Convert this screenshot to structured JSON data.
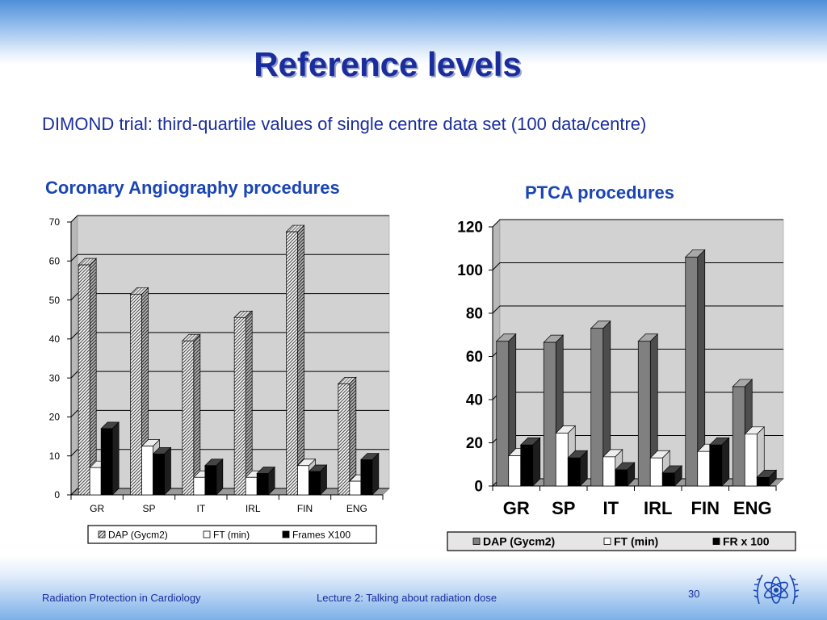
{
  "slide": {
    "title": "Reference levels",
    "subtitle": "DIMOND trial: third-quartile values of single centre data set (100 data/centre)",
    "footer_left": "Radiation Protection in Cardiology",
    "footer_center": "Lecture 2: Talking about radiation dose",
    "page_number": "30"
  },
  "colors": {
    "heading": "#1a2d9c",
    "chart_heading": "#1a45b3",
    "plot_bg": "#d2d2d2",
    "dap_bar": "#808080",
    "ft_bar": "#ffffff",
    "frames_bar": "#000000"
  },
  "chart_data": [
    {
      "type": "bar",
      "title": "Coronary Angiography procedures",
      "categories": [
        "GR",
        "SP",
        "IT",
        "IRL",
        "FIN",
        "ENG"
      ],
      "series": [
        {
          "name": "DAP (Gycm2)",
          "pattern": "hatched",
          "values": [
            59,
            51.5,
            39.5,
            45.5,
            67.5,
            28.5
          ]
        },
        {
          "name": "FT (min)",
          "pattern": "white",
          "values": [
            7,
            12.5,
            4.5,
            4.5,
            7.5,
            3.5
          ]
        },
        {
          "name": "Frames X100",
          "pattern": "black",
          "values": [
            17,
            10.5,
            7.5,
            5.5,
            6,
            9
          ]
        }
      ],
      "ylim": [
        0,
        70
      ],
      "yticks": [
        "0",
        "10",
        "20",
        "30",
        "40",
        "50",
        "60",
        "70"
      ],
      "grid": true,
      "legend": "bottom"
    },
    {
      "type": "bar",
      "title": "PTCA procedures",
      "categories": [
        "GR",
        "SP",
        "IT",
        "IRL",
        "FIN",
        "ENG"
      ],
      "series": [
        {
          "name": "DAP (Gycm2)",
          "pattern": "gray",
          "values": [
            67,
            66.5,
            73,
            67,
            106,
            46
          ]
        },
        {
          "name": "FT (min)",
          "pattern": "white",
          "values": [
            14,
            24.5,
            13.5,
            13,
            16,
            24
          ]
        },
        {
          "name": "FR x 100",
          "pattern": "black",
          "values": [
            19,
            13,
            7.5,
            6,
            19,
            4
          ]
        }
      ],
      "ylim": [
        0,
        120
      ],
      "yticks": [
        "0",
        "20",
        "40",
        "60",
        "80",
        "100",
        "120"
      ],
      "grid": true,
      "legend": "bottom"
    }
  ]
}
